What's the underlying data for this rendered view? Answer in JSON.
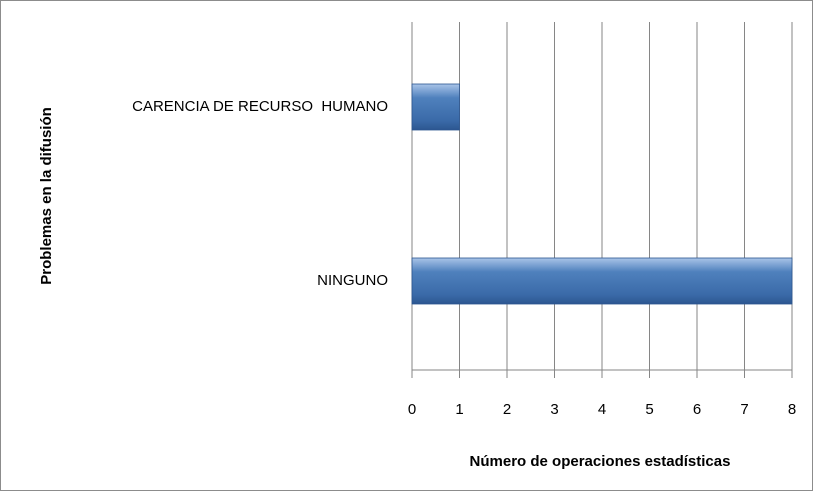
{
  "chart_data": {
    "type": "bar",
    "orientation": "horizontal",
    "xlabel": "Número de operaciones estadísticas",
    "ylabel": "Problemas en la difusión",
    "categories": [
      "CARENCIA DE RECURSO  HUMANO",
      "NINGUNO"
    ],
    "values": [
      1,
      8
    ],
    "color": "#4f81bd",
    "xlim": [
      0,
      8
    ],
    "xticks": [
      0,
      1,
      2,
      3,
      4,
      5,
      6,
      7,
      8
    ],
    "grid": true
  }
}
